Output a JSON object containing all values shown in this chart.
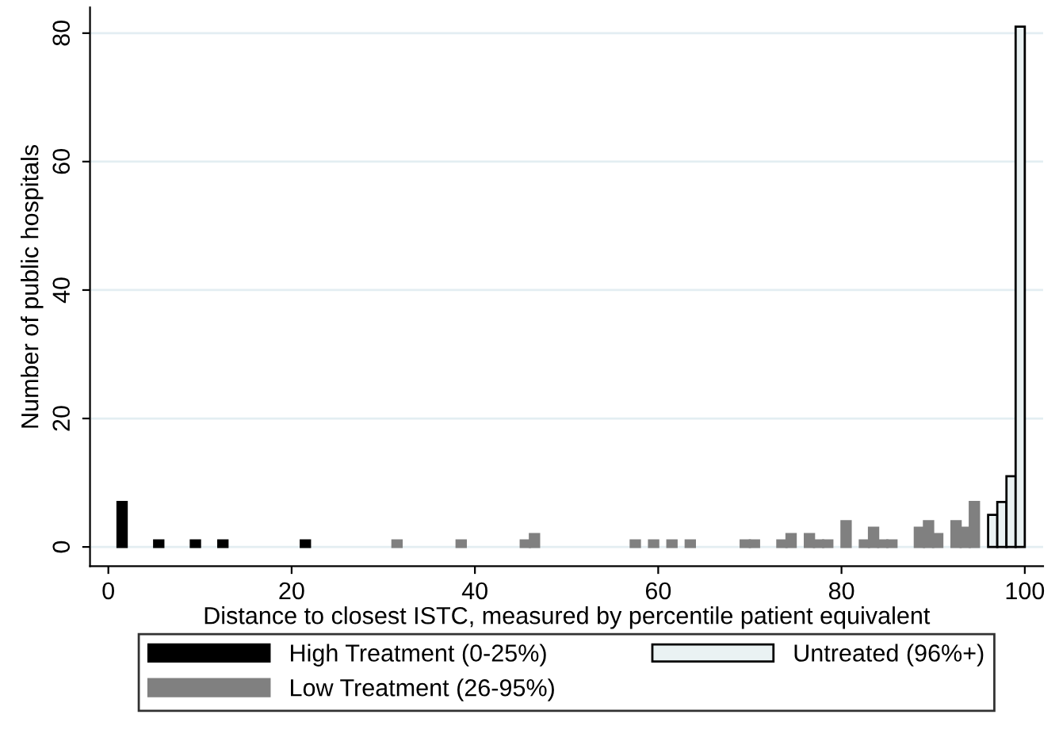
{
  "chart_data": {
    "type": "bar",
    "xlabel": "Distance to closest ISTC, measured by percentile patient equivalent",
    "ylabel": "Number of public hospitals",
    "series": [
      {
        "name": "High Treatment (0-25%)",
        "color": "#000000",
        "x": [
          1.5,
          5.5,
          9.5,
          12.5,
          21.5
        ],
        "values": [
          7,
          1,
          1,
          1,
          1
        ]
      },
      {
        "name": "Low Treatment (26-95%)",
        "color": "#808080",
        "x": [
          31.5,
          38.5,
          45.5,
          46.5,
          57.5,
          59.5,
          61.5,
          63.5,
          69.5,
          70.5,
          73.5,
          74.5,
          76.5,
          77.5,
          78.5,
          80.5,
          82.5,
          83.5,
          84.5,
          85.5,
          88.5,
          89.5,
          90.5,
          92.5,
          93.5,
          94.5
        ],
        "values": [
          1,
          1,
          1,
          2,
          1,
          1,
          1,
          1,
          1,
          1,
          1,
          2,
          2,
          1,
          1,
          4,
          1,
          3,
          1,
          1,
          3,
          4,
          2,
          4,
          3,
          7
        ]
      },
      {
        "name": "Untreated (96%+)",
        "color": "#eaf2f3",
        "x": [
          96.5,
          97.5,
          98.5,
          99.5
        ],
        "values": [
          5,
          7,
          11,
          81
        ]
      }
    ],
    "xlim": [
      -2,
      102
    ],
    "ylim": [
      -3,
      84
    ],
    "xticks": [
      0,
      20,
      40,
      60,
      80,
      100
    ],
    "yticks": [
      0,
      20,
      40,
      60,
      80
    ],
    "grid": "y",
    "legend": "bottom"
  }
}
